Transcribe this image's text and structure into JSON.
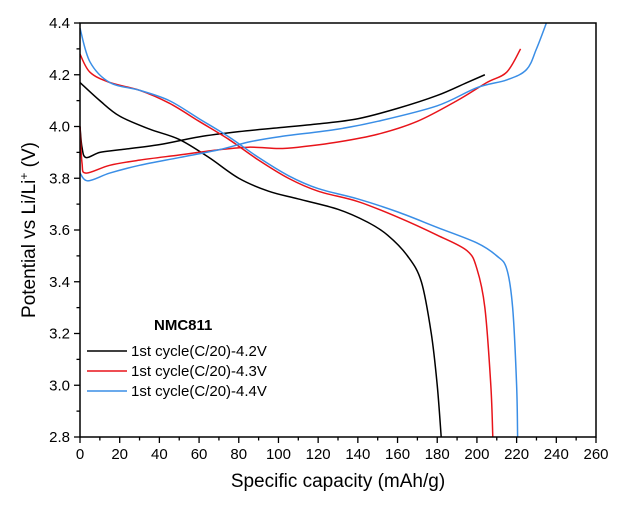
{
  "chart_data": {
    "type": "line",
    "title": "",
    "xlabel": "Specific capacity (mAh/g)",
    "ylabel": {
      "main": "Potential vs Li/Li",
      "sup": "+",
      "unit": " (V)"
    },
    "xlim": [
      0,
      260
    ],
    "ylim": [
      2.8,
      4.4
    ],
    "xticks": [
      "0",
      "20",
      "40",
      "60",
      "80",
      "100",
      "120",
      "140",
      "160",
      "180",
      "200",
      "220",
      "240",
      "260"
    ],
    "yticks": [
      "2.8",
      "3.0",
      "3.2",
      "3.4",
      "3.6",
      "3.8",
      "4.0",
      "4.2",
      "4.4"
    ],
    "grid": false,
    "legend": {
      "title": "NMC811",
      "placement": "bottom-left"
    },
    "series": [
      {
        "name": "1st cycle(C/20)-4.2V",
        "color": "#000000",
        "charge": [
          [
            0,
            4.0
          ],
          [
            1,
            3.92
          ],
          [
            3,
            3.88
          ],
          [
            10,
            3.9
          ],
          [
            20,
            3.91
          ],
          [
            40,
            3.93
          ],
          [
            60,
            3.96
          ],
          [
            80,
            3.98
          ],
          [
            100,
            3.995
          ],
          [
            120,
            4.01
          ],
          [
            140,
            4.03
          ],
          [
            160,
            4.07
          ],
          [
            180,
            4.12
          ],
          [
            195,
            4.17
          ],
          [
            204,
            4.2
          ]
        ],
        "discharge": [
          [
            0,
            4.17
          ],
          [
            10,
            4.1
          ],
          [
            20,
            4.04
          ],
          [
            35,
            3.99
          ],
          [
            50,
            3.95
          ],
          [
            65,
            3.88
          ],
          [
            80,
            3.8
          ],
          [
            95,
            3.75
          ],
          [
            110,
            3.72
          ],
          [
            130,
            3.68
          ],
          [
            145,
            3.63
          ],
          [
            155,
            3.58
          ],
          [
            165,
            3.5
          ],
          [
            172,
            3.4
          ],
          [
            177,
            3.2
          ],
          [
            180,
            3.0
          ],
          [
            182,
            2.8
          ]
        ]
      },
      {
        "name": "1st cycle(C/20)-4.3V",
        "color": "#e8141a",
        "charge": [
          [
            0,
            4.0
          ],
          [
            1,
            3.86
          ],
          [
            3,
            3.82
          ],
          [
            15,
            3.85
          ],
          [
            30,
            3.87
          ],
          [
            50,
            3.89
          ],
          [
            70,
            3.91
          ],
          [
            85,
            3.92
          ],
          [
            100,
            3.915
          ],
          [
            110,
            3.92
          ],
          [
            130,
            3.94
          ],
          [
            150,
            3.97
          ],
          [
            170,
            4.02
          ],
          [
            190,
            4.1
          ],
          [
            205,
            4.17
          ],
          [
            215,
            4.21
          ],
          [
            222,
            4.3
          ]
        ],
        "discharge": [
          [
            0,
            4.28
          ],
          [
            5,
            4.21
          ],
          [
            15,
            4.17
          ],
          [
            30,
            4.14
          ],
          [
            45,
            4.09
          ],
          [
            60,
            4.02
          ],
          [
            75,
            3.95
          ],
          [
            90,
            3.87
          ],
          [
            105,
            3.8
          ],
          [
            120,
            3.75
          ],
          [
            140,
            3.71
          ],
          [
            160,
            3.65
          ],
          [
            180,
            3.58
          ],
          [
            195,
            3.52
          ],
          [
            200,
            3.45
          ],
          [
            204,
            3.3
          ],
          [
            207,
            3.0
          ],
          [
            208,
            2.8
          ]
        ]
      },
      {
        "name": "1st cycle(C/20)-4.4V",
        "color": "#3a8ee6",
        "charge": [
          [
            0,
            3.82
          ],
          [
            4,
            3.79
          ],
          [
            15,
            3.82
          ],
          [
            30,
            3.85
          ],
          [
            50,
            3.88
          ],
          [
            70,
            3.91
          ],
          [
            85,
            3.94
          ],
          [
            100,
            3.96
          ],
          [
            130,
            3.99
          ],
          [
            150,
            4.02
          ],
          [
            180,
            4.08
          ],
          [
            200,
            4.15
          ],
          [
            215,
            4.18
          ],
          [
            225,
            4.22
          ],
          [
            230,
            4.3
          ],
          [
            235,
            4.4
          ]
        ],
        "discharge": [
          [
            0,
            4.38
          ],
          [
            5,
            4.25
          ],
          [
            15,
            4.17
          ],
          [
            30,
            4.14
          ],
          [
            45,
            4.1
          ],
          [
            60,
            4.03
          ],
          [
            75,
            3.96
          ],
          [
            90,
            3.88
          ],
          [
            105,
            3.81
          ],
          [
            120,
            3.76
          ],
          [
            140,
            3.72
          ],
          [
            160,
            3.67
          ],
          [
            180,
            3.61
          ],
          [
            200,
            3.55
          ],
          [
            210,
            3.5
          ],
          [
            215,
            3.45
          ],
          [
            218,
            3.3
          ],
          [
            220,
            3.0
          ],
          [
            220.5,
            2.8
          ]
        ]
      }
    ]
  }
}
